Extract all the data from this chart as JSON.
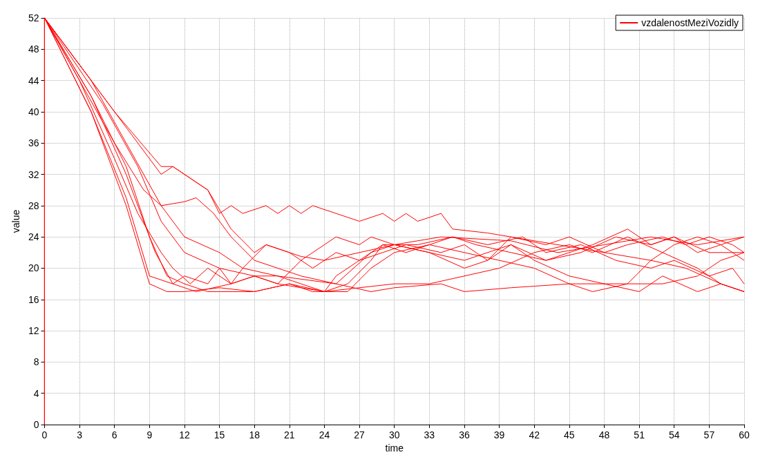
{
  "chart_data": {
    "type": "line",
    "xlabel": "time",
    "ylabel": "value",
    "xlim": [
      0,
      60
    ],
    "ylim": [
      0,
      52
    ],
    "xticks": [
      0,
      3,
      6,
      9,
      12,
      15,
      18,
      21,
      24,
      27,
      30,
      33,
      36,
      39,
      42,
      45,
      48,
      51,
      54,
      57,
      60
    ],
    "yticks": [
      0,
      4,
      8,
      12,
      16,
      20,
      24,
      28,
      32,
      36,
      40,
      44,
      48,
      52
    ],
    "grid": true,
    "legend": "top right",
    "marker": "none",
    "line_style": "solid",
    "series": [
      {
        "name": "vzdalenostMeziVozidly",
        "color": "#ff0000",
        "x": [
          0,
          0,
          5,
          8,
          10,
          11,
          14,
          15,
          16,
          17,
          19,
          20,
          21,
          22,
          23,
          25,
          27,
          29,
          30,
          31,
          32,
          34,
          35,
          38,
          40,
          44,
          48,
          52,
          55,
          58,
          60
        ],
        "values": [
          0,
          52,
          42,
          36,
          32,
          33,
          30,
          27,
          28,
          27,
          28,
          27,
          28,
          27,
          28,
          27,
          26,
          27,
          26,
          27,
          26,
          27,
          25,
          24.5,
          24,
          23,
          22,
          21,
          20,
          18,
          17
        ]
      },
      {
        "color": "#ff0000",
        "x": [
          0,
          0,
          3,
          6,
          8.5,
          10,
          12,
          13,
          14.5,
          16,
          18,
          20,
          22,
          25,
          28,
          30,
          34,
          40,
          44,
          48,
          52,
          56,
          60
        ],
        "values": [
          0,
          52,
          44,
          36,
          30,
          28,
          28.5,
          29,
          27,
          24,
          21,
          20,
          19,
          18,
          22,
          23,
          24,
          23.5,
          22,
          23,
          24,
          23,
          24
        ]
      },
      {
        "color": "#ff0000",
        "x": [
          0,
          0,
          3,
          6,
          10,
          11,
          14,
          16,
          18,
          19,
          21,
          22,
          24,
          27,
          30,
          33,
          36,
          40,
          43,
          46,
          49,
          52,
          54,
          57,
          60
        ],
        "values": [
          0,
          52,
          46,
          40,
          33,
          33,
          30,
          25,
          22,
          23,
          22,
          21.5,
          21,
          22,
          23,
          22,
          21,
          23,
          21,
          22,
          24,
          23,
          24,
          22,
          22
        ]
      },
      {
        "color": "#ff0000",
        "x": [
          0,
          0,
          4,
          7,
          10,
          12,
          15,
          17,
          20,
          25,
          28,
          30,
          34,
          36,
          40,
          45,
          50,
          53,
          56,
          58,
          60
        ],
        "values": [
          0,
          52,
          44,
          36,
          28,
          24,
          22,
          20,
          19,
          18,
          17,
          17.5,
          18,
          17,
          17.5,
          18,
          18,
          18,
          19,
          21,
          22
        ]
      },
      {
        "color": "#ff0000",
        "x": [
          0,
          0,
          4,
          7,
          9,
          10.5,
          12,
          15,
          18,
          21,
          24,
          27,
          30,
          33,
          36,
          39,
          42,
          45,
          47,
          50,
          53,
          56,
          58,
          60
        ],
        "values": [
          0,
          52,
          40,
          28,
          18,
          17,
          17,
          17.5,
          17,
          18,
          17,
          17.5,
          18,
          18,
          19,
          20,
          22,
          23,
          22,
          24,
          22,
          20,
          18,
          17
        ]
      },
      {
        "color": "#ff0000",
        "x": [
          0,
          0,
          4,
          7,
          9,
          11,
          12,
          14,
          15,
          16,
          18,
          20,
          22,
          25,
          27,
          28,
          30,
          33,
          36,
          38,
          40,
          42,
          45,
          48,
          51,
          53,
          56,
          58,
          60
        ],
        "values": [
          0,
          52,
          40,
          29,
          19,
          18,
          19,
          18,
          20,
          18,
          19,
          18,
          21,
          24,
          23,
          24,
          23,
          22,
          20,
          21,
          23,
          21,
          19,
          18,
          17,
          19,
          17,
          18,
          17
        ]
      },
      {
        "color": "#ff0000",
        "x": [
          0,
          0,
          4,
          7,
          9.5,
          11,
          13,
          16,
          18,
          20,
          22,
          24,
          26,
          28,
          29,
          31,
          33,
          35,
          37,
          40,
          43,
          45,
          47,
          50,
          52,
          54,
          56,
          58,
          60
        ],
        "values": [
          0,
          52,
          42,
          32,
          22,
          18,
          17,
          18,
          19,
          19,
          18,
          17,
          18,
          21,
          23,
          22,
          23,
          24,
          23,
          22,
          21,
          22,
          23,
          25,
          23,
          24,
          22,
          23,
          21
        ]
      },
      {
        "color": "#ff0000",
        "x": [
          0,
          0,
          3,
          6,
          8,
          10,
          11,
          12.5,
          14,
          16,
          17,
          19,
          21,
          23,
          25,
          27,
          29,
          32,
          35,
          38,
          41,
          43,
          46,
          49,
          52,
          54,
          57,
          59,
          60
        ],
        "values": [
          0,
          52,
          44,
          34,
          27,
          22,
          20,
          18,
          20,
          18,
          20,
          23,
          22,
          20,
          22,
          21,
          23,
          23,
          24,
          23,
          24,
          22,
          23,
          21,
          20,
          21,
          19,
          20,
          18
        ]
      },
      {
        "color": "#ff0000",
        "x": [
          0,
          0,
          4,
          7,
          9,
          10.5,
          12,
          14,
          18,
          21,
          23,
          26,
          28,
          30,
          33,
          36,
          39,
          42,
          45,
          47,
          50,
          52,
          54,
          56,
          58,
          60
        ],
        "values": [
          0,
          52,
          42,
          33,
          24,
          19,
          18,
          17,
          17,
          18,
          17,
          17,
          20,
          22,
          23,
          22,
          21,
          20,
          18,
          17,
          18,
          21,
          23,
          24,
          23,
          24
        ]
      },
      {
        "color": "#ff0000",
        "x": [
          0,
          0,
          5,
          8,
          10,
          12,
          15,
          18,
          20,
          24,
          25,
          27,
          29,
          31,
          34,
          36,
          38,
          40,
          43,
          45,
          48,
          50,
          53,
          55,
          57,
          59,
          60
        ],
        "values": [
          0,
          52,
          41,
          33,
          26,
          22,
          20,
          19,
          18,
          17,
          19,
          21,
          22,
          23,
          22,
          23,
          21,
          24,
          23,
          24,
          22,
          23,
          24,
          23,
          24,
          23,
          22
        ]
      }
    ]
  }
}
